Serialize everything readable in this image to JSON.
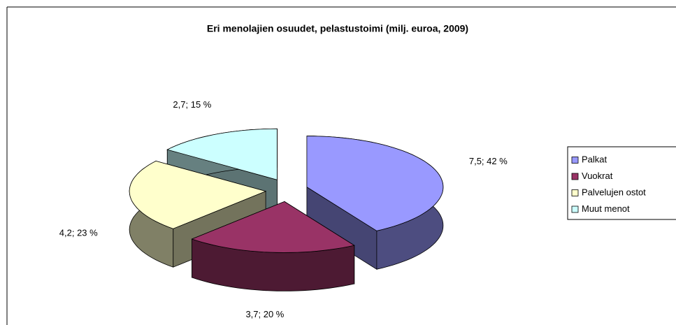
{
  "chart_data": {
    "type": "pie3d",
    "title": "Eri menolajien osuudet, pelastustoimi (milj. euroa, 2009)",
    "categories": [
      "Palkat",
      "Vuokrat",
      "Palvelujen ostot",
      "Muut menot"
    ],
    "values": [
      7.5,
      3.7,
      4.2,
      2.7
    ],
    "value_labels": [
      "7,5; 42 %",
      "3,7; 20 %",
      "4,2; 23 %",
      "2,7; 15 %"
    ],
    "colors": [
      "#9999ff",
      "#993366",
      "#ffffcc",
      "#ccffff"
    ],
    "legend": "right"
  }
}
